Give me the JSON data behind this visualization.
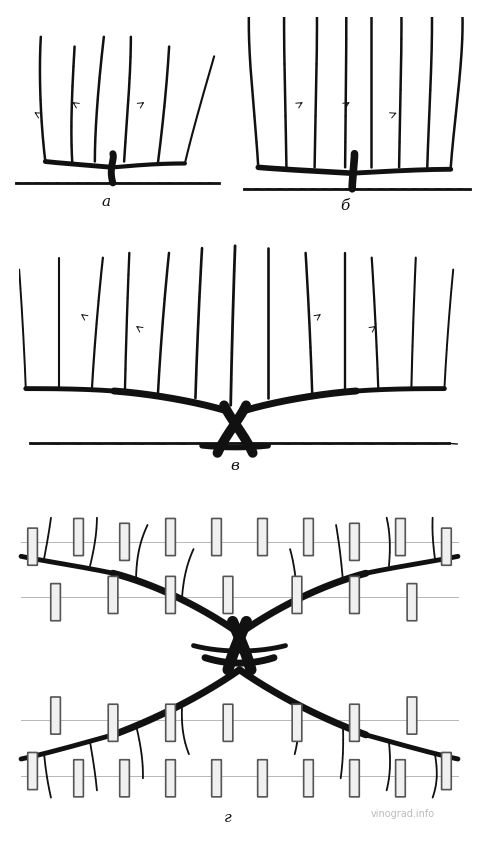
{
  "background_color": "#ffffff",
  "label_a": "а",
  "label_b": "б",
  "label_v": "в",
  "label_g": "г",
  "watermark": "vinograd.info",
  "line_color": "#111111",
  "figsize": [
    4.79,
    8.66
  ],
  "dpi": 100
}
